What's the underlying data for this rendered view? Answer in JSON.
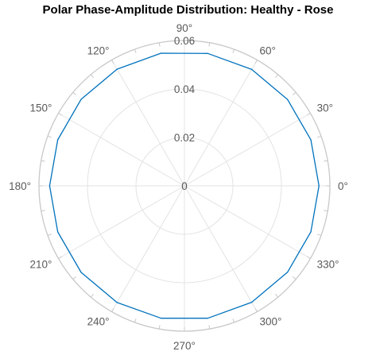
{
  "chart_data": {
    "type": "line",
    "subtype": "polar",
    "title": "Polar Phase-Amplitude Distribution: Healthy - Rose",
    "theta_ticks_deg": [
      0,
      30,
      60,
      90,
      120,
      150,
      180,
      210,
      240,
      270,
      300,
      330
    ],
    "theta_tick_labels": [
      "0°",
      "30°",
      "60°",
      "90°",
      "120°",
      "150°",
      "180°",
      "210°",
      "240°",
      "270°",
      "300°",
      "330°"
    ],
    "r_ticks": [
      0,
      0.02,
      0.04,
      0.06
    ],
    "r_tick_labels": [
      "0",
      "0.02",
      "0.04",
      "0.06"
    ],
    "rlim": [
      0,
      0.06
    ],
    "grid": true,
    "series": [
      {
        "color": "#0072BD",
        "theta_deg": [
          0,
          20,
          40,
          60,
          80,
          100,
          120,
          140,
          160,
          180,
          200,
          220,
          240,
          260,
          280,
          300,
          320,
          340,
          360
        ],
        "r": [
          0.0555,
          0.0555,
          0.0555,
          0.0555,
          0.0555,
          0.0556,
          0.0556,
          0.0556,
          0.0556,
          0.0556,
          0.0556,
          0.0556,
          0.0556,
          0.0555,
          0.0555,
          0.0555,
          0.0555,
          0.0555,
          0.0555
        ]
      }
    ]
  }
}
